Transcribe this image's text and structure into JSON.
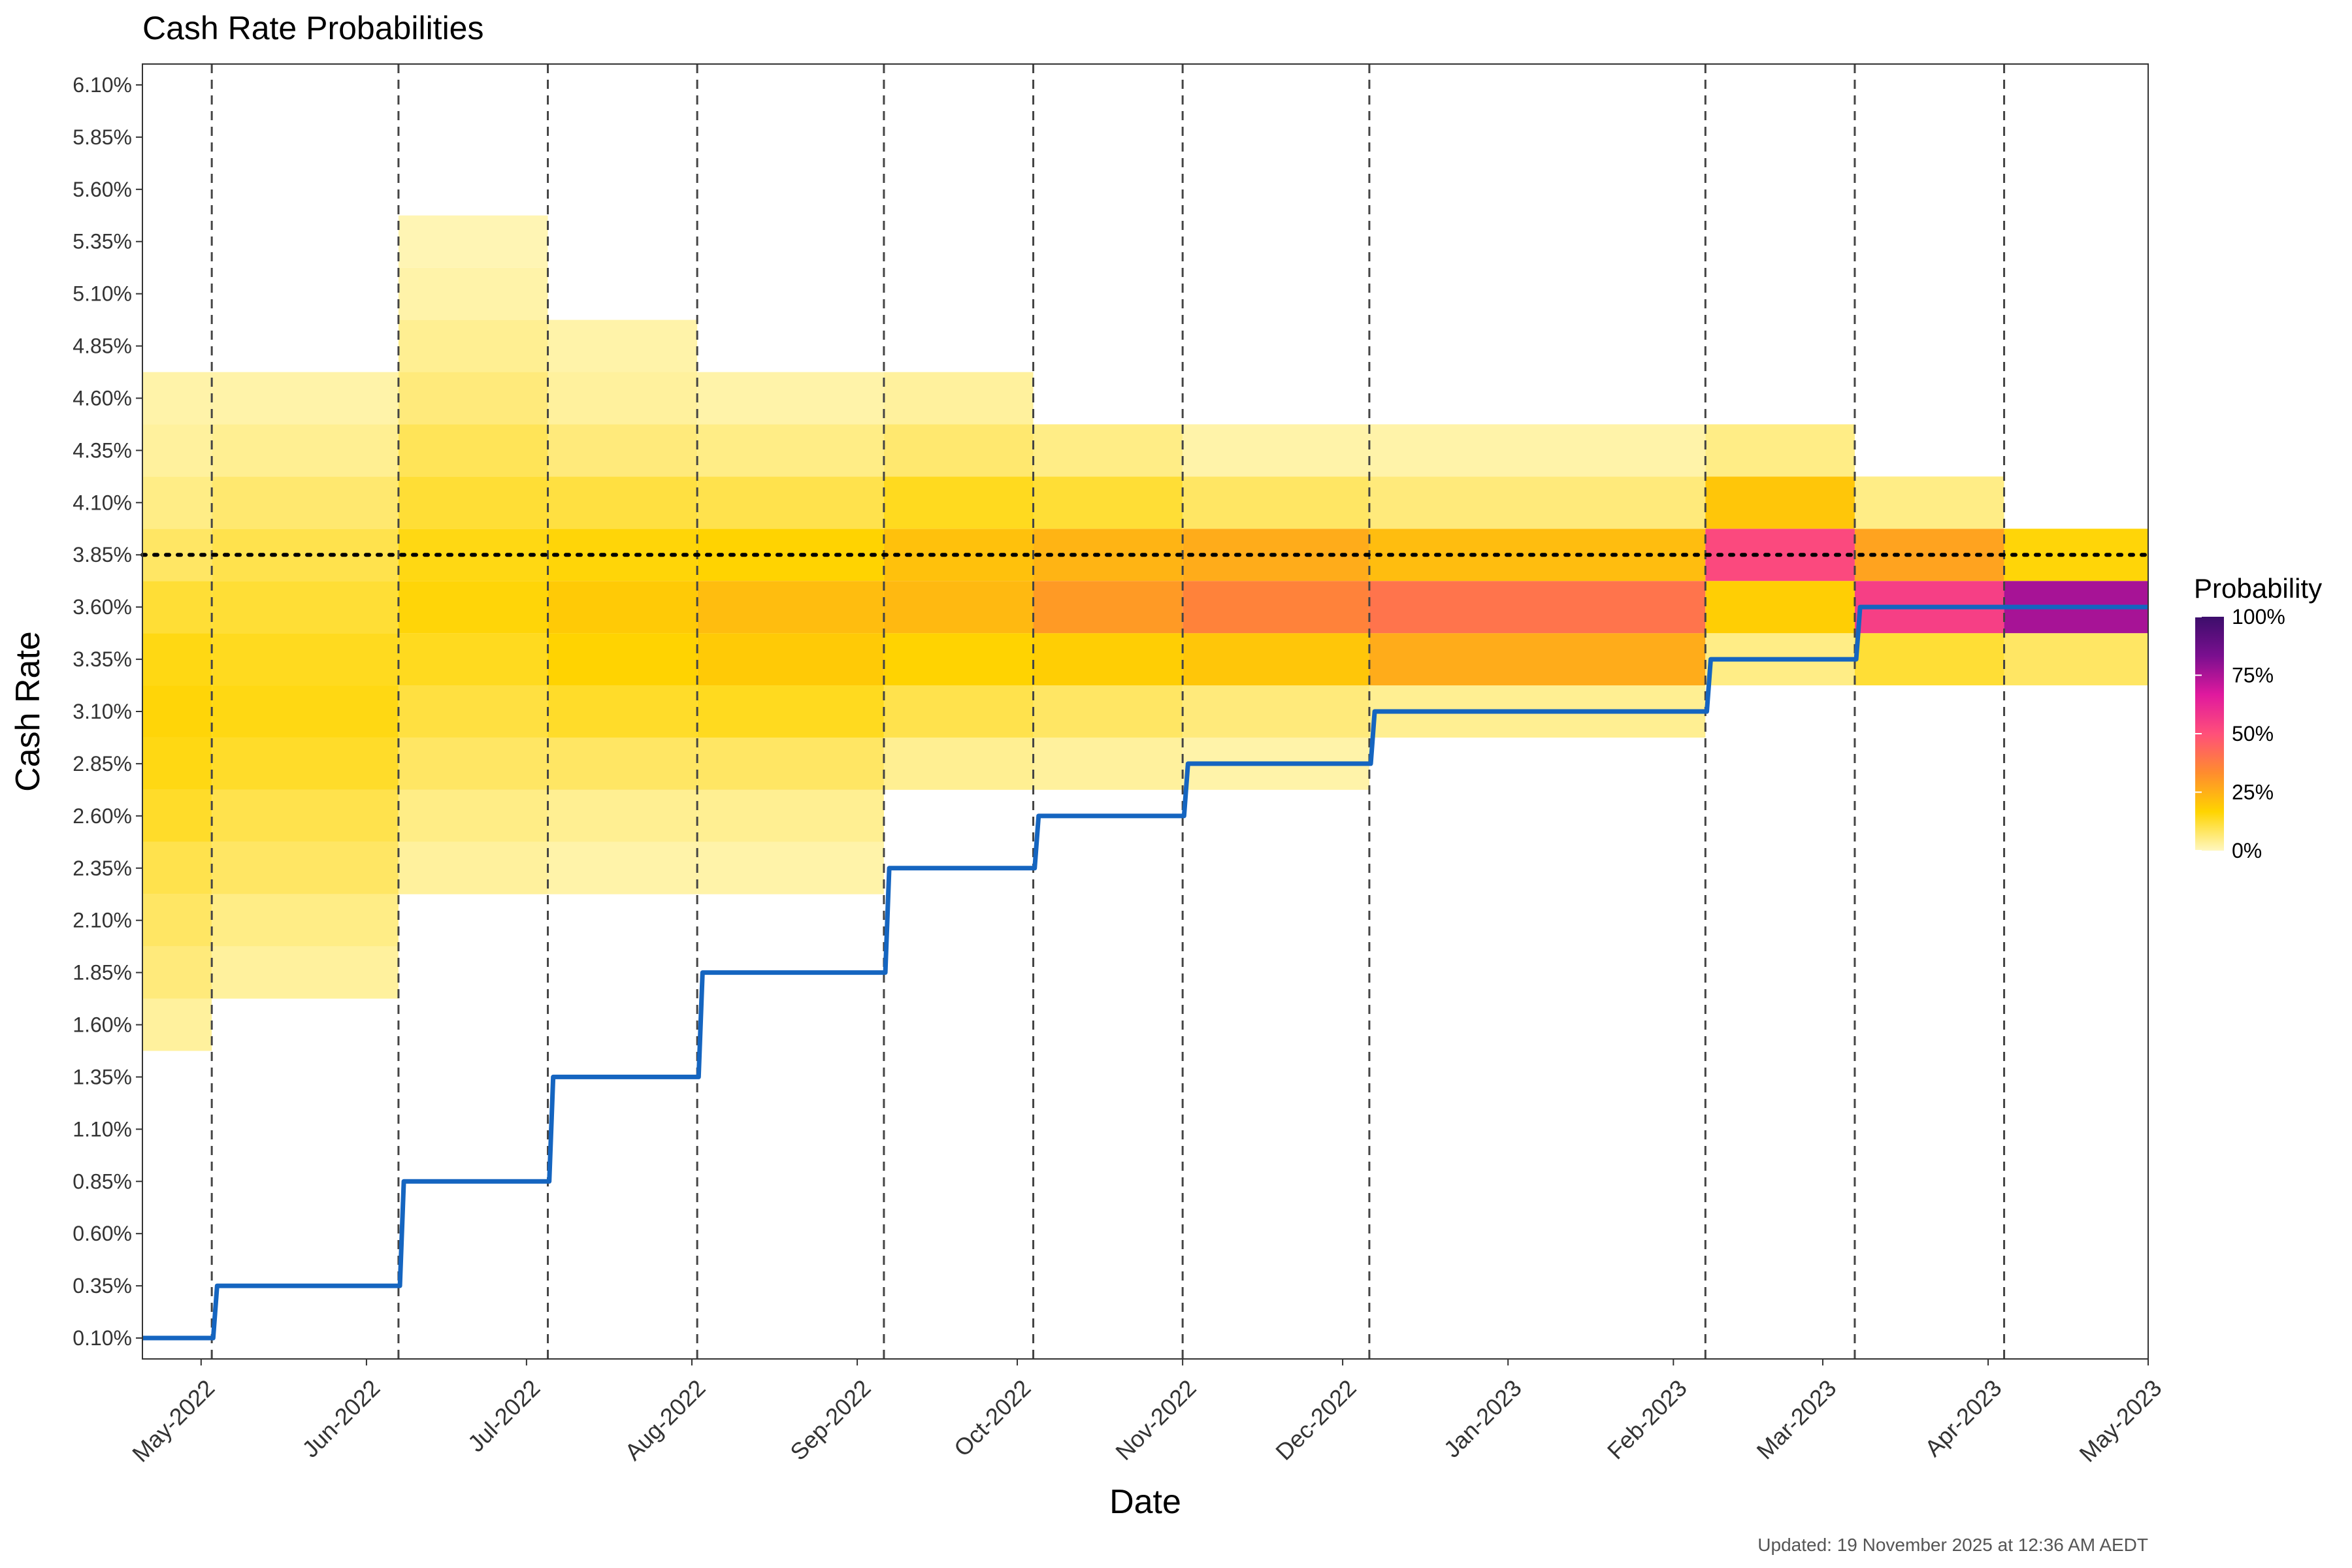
{
  "chart_data": {
    "type": "heatmap",
    "title": "Cash Rate Probabilities",
    "xlabel": "Date",
    "ylabel": "Cash Rate",
    "caption": "Updated: 19 November 2025 at 12:36 AM AEDT",
    "x_range": [
      "2022-04-20",
      "2023-05-01"
    ],
    "y_range": [
      0.0,
      6.2
    ],
    "y_ticks": [
      "0.10%",
      "0.35%",
      "0.60%",
      "0.85%",
      "1.10%",
      "1.35%",
      "1.60%",
      "1.85%",
      "2.10%",
      "2.35%",
      "2.60%",
      "2.85%",
      "3.10%",
      "3.35%",
      "3.60%",
      "3.85%",
      "4.10%",
      "4.35%",
      "4.60%",
      "4.85%",
      "5.10%",
      "5.35%",
      "5.60%",
      "5.85%",
      "6.10%"
    ],
    "x_ticks": [
      {
        "date": "2022-05-01",
        "label": "May-2022"
      },
      {
        "date": "2022-06-01",
        "label": "Jun-2022"
      },
      {
        "date": "2022-07-01",
        "label": "Jul-2022"
      },
      {
        "date": "2022-08-01",
        "label": "Aug-2022"
      },
      {
        "date": "2022-09-01",
        "label": "Sep-2022"
      },
      {
        "date": "2022-10-01",
        "label": "Oct-2022"
      },
      {
        "date": "2022-11-01",
        "label": "Nov-2022"
      },
      {
        "date": "2022-12-01",
        "label": "Dec-2022"
      },
      {
        "date": "2023-01-01",
        "label": "Jan-2023"
      },
      {
        "date": "2023-02-01",
        "label": "Feb-2023"
      },
      {
        "date": "2023-03-01",
        "label": "Mar-2023"
      },
      {
        "date": "2023-04-01",
        "label": "Apr-2023"
      },
      {
        "date": "2023-05-01",
        "label": "May-2023"
      }
    ],
    "meeting_dates": [
      "2022-05-03",
      "2022-06-07",
      "2022-07-05",
      "2022-08-02",
      "2022-09-06",
      "2022-10-04",
      "2022-11-01",
      "2022-12-06",
      "2023-02-07",
      "2023-03-07",
      "2023-04-04"
    ],
    "target_rate_line": 3.85,
    "cash_rate_steps": [
      {
        "date": "2022-04-20",
        "rate": 0.1
      },
      {
        "date": "2022-05-04",
        "rate": 0.35
      },
      {
        "date": "2022-06-08",
        "rate": 0.85
      },
      {
        "date": "2022-07-06",
        "rate": 1.35
      },
      {
        "date": "2022-08-03",
        "rate": 1.85
      },
      {
        "date": "2022-09-07",
        "rate": 2.35
      },
      {
        "date": "2022-10-05",
        "rate": 2.6
      },
      {
        "date": "2022-11-02",
        "rate": 2.85
      },
      {
        "date": "2022-12-07",
        "rate": 3.1
      },
      {
        "date": "2023-02-08",
        "rate": 3.35
      },
      {
        "date": "2023-03-08",
        "rate": 3.6
      },
      {
        "date": "2023-05-01",
        "rate": 3.6
      }
    ],
    "probability_periods": [
      {
        "start": "2022-04-20",
        "end": "2022-05-03",
        "probs": {
          "1.60": 3,
          "1.85": 6,
          "2.10": 8,
          "2.35": 10,
          "2.60": 13,
          "2.85": 15,
          "3.10": 16,
          "3.35": 15,
          "3.60": 12,
          "3.85": 8,
          "4.10": 5,
          "4.35": 3,
          "4.60": 2
        }
      },
      {
        "start": "2022-05-03",
        "end": "2022-06-07",
        "probs": {
          "1.85": 3,
          "2.10": 5,
          "2.35": 8,
          "2.60": 10,
          "2.85": 13,
          "3.10": 15,
          "3.35": 14,
          "3.60": 12,
          "3.85": 10,
          "4.10": 7,
          "4.35": 4,
          "4.60": 2
        }
      },
      {
        "start": "2022-06-07",
        "end": "2022-07-05",
        "probs": {
          "2.35": 3,
          "2.60": 5,
          "2.85": 8,
          "3.10": 11,
          "3.35": 14,
          "3.60": 16,
          "3.85": 15,
          "4.10": 12,
          "4.35": 9,
          "4.60": 6,
          "4.85": 4,
          "5.10": 2,
          "5.35": 1
        }
      },
      {
        "start": "2022-07-05",
        "end": "2022-08-02",
        "probs": {
          "2.35": 2,
          "2.60": 4,
          "2.85": 8,
          "3.10": 13,
          "3.35": 17,
          "3.60": 19,
          "3.85": 16,
          "4.10": 11,
          "4.35": 6,
          "4.60": 3,
          "4.85": 2
        }
      },
      {
        "start": "2022-08-02",
        "end": "2022-09-06",
        "probs": {
          "2.35": 2,
          "2.60": 4,
          "2.85": 8,
          "3.10": 14,
          "3.35": 19,
          "3.60": 22,
          "3.85": 17,
          "4.10": 10,
          "4.35": 5,
          "4.60": 2
        }
      },
      {
        "start": "2022-09-06",
        "end": "2022-10-04",
        "probs": {
          "2.85": 4,
          "3.10": 10,
          "3.35": 17,
          "3.60": 23,
          "3.85": 21,
          "4.10": 14,
          "4.35": 7,
          "4.60": 3
        }
      },
      {
        "start": "2022-10-04",
        "end": "2022-11-01",
        "probs": {
          "2.85": 3,
          "3.10": 8,
          "3.35": 18,
          "3.60": 30,
          "3.85": 24,
          "4.10": 12,
          "4.35": 5
        }
      },
      {
        "start": "2022-11-01",
        "end": "2022-12-06",
        "probs": {
          "2.85": 2,
          "3.10": 6,
          "3.35": 20,
          "3.60": 36,
          "3.85": 26,
          "4.10": 8,
          "4.35": 2
        }
      },
      {
        "start": "2022-12-06",
        "end": "2023-02-07",
        "probs": {
          "3.10": 4,
          "3.35": 26,
          "3.60": 40,
          "3.85": 22,
          "4.10": 6,
          "4.35": 2
        }
      },
      {
        "start": "2023-02-07",
        "end": "2023-03-07",
        "probs": {
          "3.35": 5,
          "3.60": 18,
          "3.85": 52,
          "4.10": 20,
          "4.35": 5
        }
      },
      {
        "start": "2023-03-07",
        "end": "2023-04-04",
        "probs": {
          "3.35": 12,
          "3.60": 55,
          "3.85": 28,
          "4.10": 5
        }
      },
      {
        "start": "2023-04-04",
        "end": "2023-05-01",
        "probs": {
          "3.35": 8,
          "3.60": 76,
          "3.85": 16
        }
      }
    ],
    "legend": {
      "title": "Probability",
      "labels": [
        "0%",
        "25%",
        "50%",
        "75%",
        "100%"
      ],
      "colors": [
        "#fff7c0",
        "#ffd400",
        "#ff8c2e",
        "#ff4f7a",
        "#e0199e",
        "#7a0f8f",
        "#3c0e6b"
      ]
    },
    "colors": {
      "cash_rate_line": "#1565c0",
      "meeting_line": "#444444",
      "target_line": "#000000"
    }
  }
}
